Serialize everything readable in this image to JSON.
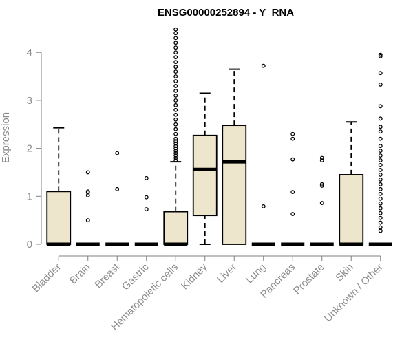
{
  "chart_data": {
    "type": "box",
    "title": "ENSG00000252894 - Y_RNA",
    "xlabel": "",
    "ylabel": "Expression",
    "ylim": [
      0,
      4.5
    ],
    "yticks": [
      0,
      1,
      2,
      3,
      4
    ],
    "categories": [
      "Bladder",
      "Brain",
      "Breast",
      "Gastric",
      "Hematopoietic cells",
      "Kidney",
      "Liver",
      "Lung",
      "Pancreas",
      "Prostate",
      "Skin",
      "Unknown / Other"
    ],
    "boxes": [
      {
        "q1": 0,
        "median": 0,
        "q3": 1.1,
        "whisker_low": 0,
        "whisker_high": 2.43,
        "outliers": []
      },
      {
        "q1": 0,
        "median": 0,
        "q3": 0,
        "whisker_low": 0,
        "whisker_high": 0,
        "outliers": [
          0.5,
          1.02,
          1.08,
          1.1,
          1.5
        ]
      },
      {
        "q1": 0,
        "median": 0,
        "q3": 0,
        "whisker_low": 0,
        "whisker_high": 0,
        "outliers": [
          1.15,
          1.9
        ]
      },
      {
        "q1": 0,
        "median": 0,
        "q3": 0,
        "whisker_low": 0,
        "whisker_high": 0,
        "outliers": [
          0.73,
          0.98,
          1.38
        ]
      },
      {
        "q1": 0,
        "median": 0,
        "q3": 0.68,
        "whisker_low": 0,
        "whisker_high": 1.72,
        "outliers": [
          1.75,
          1.8,
          1.85,
          1.9,
          1.95,
          2.0,
          2.05,
          2.1,
          2.15,
          2.2,
          2.3,
          2.4,
          2.5,
          2.6,
          2.7,
          2.8,
          2.9,
          3.0,
          3.1,
          3.2,
          3.3,
          3.4,
          3.5,
          3.6,
          3.7,
          3.8,
          3.9,
          4.0,
          4.1,
          4.2,
          4.3,
          4.4,
          4.48
        ]
      },
      {
        "q1": 0.6,
        "median": 1.56,
        "q3": 2.27,
        "whisker_low": 0,
        "whisker_high": 3.15,
        "outliers": []
      },
      {
        "q1": 0,
        "median": 1.72,
        "q3": 2.48,
        "whisker_low": 0,
        "whisker_high": 3.65,
        "outliers": []
      },
      {
        "q1": 0,
        "median": 0,
        "q3": 0,
        "whisker_low": 0,
        "whisker_high": 0,
        "outliers": [
          0.79,
          3.72
        ]
      },
      {
        "q1": 0,
        "median": 0,
        "q3": 0,
        "whisker_low": 0,
        "whisker_high": 0,
        "outliers": [
          0.63,
          1.09,
          1.77,
          2.2,
          2.3
        ]
      },
      {
        "q1": 0,
        "median": 0,
        "q3": 0,
        "whisker_low": 0,
        "whisker_high": 0,
        "outliers": [
          0.86,
          1.22,
          1.25,
          1.75,
          1.8
        ]
      },
      {
        "q1": 0,
        "median": 0,
        "q3": 1.45,
        "whisker_low": 0,
        "whisker_high": 2.55,
        "outliers": []
      },
      {
        "q1": 0,
        "median": 0,
        "q3": 0,
        "whisker_low": 0,
        "whisker_high": 0,
        "outliers": [
          0.28,
          0.35,
          0.45,
          0.55,
          0.65,
          0.75,
          0.85,
          0.95,
          1.05,
          1.15,
          1.25,
          1.35,
          1.45,
          1.55,
          1.65,
          1.75,
          1.85,
          1.95,
          2.05,
          2.2,
          2.35,
          2.45,
          2.62,
          2.88,
          3.33,
          3.57,
          3.92,
          3.95
        ]
      }
    ],
    "colors": {
      "box_fill": "#ede6cc",
      "box_stroke": "#000000",
      "axis": "#808080",
      "text": "#8c8c8c"
    },
    "grid": false,
    "legend": "none"
  }
}
